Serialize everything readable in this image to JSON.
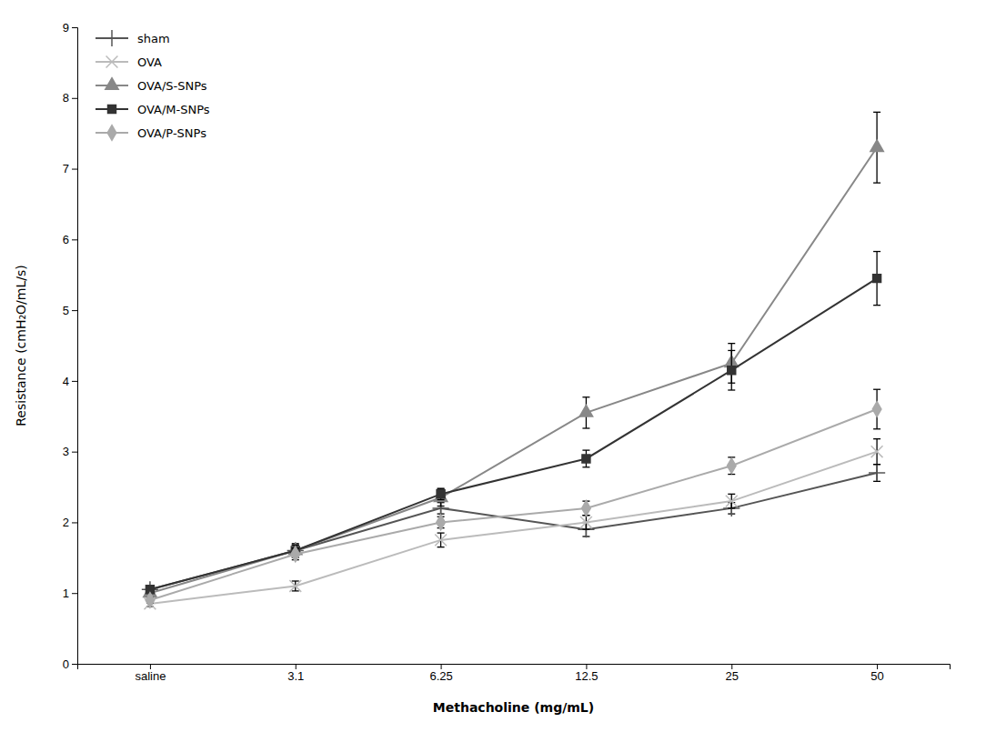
{
  "chart_data": {
    "type": "line",
    "x_label": "Methacholine (mg/mL)",
    "y_label": "Resistance (cmH₂O/mL/s)",
    "categories": [
      "saline",
      "3.1",
      "6.25",
      "12.5",
      "25",
      "50"
    ],
    "series": [
      {
        "name": "sham",
        "color": "#555555",
        "marker": "plus",
        "line_style": "solid",
        "values": [
          1.05,
          1.6,
          2.2,
          1.9,
          2.2,
          2.7
        ],
        "errors": [
          0.04,
          0.08,
          0.08,
          0.1,
          0.08,
          0.12
        ]
      },
      {
        "name": "OVA",
        "color": "#bbbbbb",
        "marker": "x",
        "line_style": "solid",
        "values": [
          0.85,
          1.1,
          1.75,
          2.0,
          2.3,
          3.0
        ],
        "errors": [
          0.04,
          0.07,
          0.1,
          0.1,
          0.1,
          0.18
        ]
      },
      {
        "name": "OVA/S-SNPs",
        "color": "#888888",
        "marker": "triangle",
        "line_style": "solid",
        "values": [
          1.0,
          1.6,
          2.35,
          3.55,
          4.25,
          7.3
        ],
        "errors": [
          0.05,
          0.1,
          0.12,
          0.22,
          0.28,
          0.5
        ]
      },
      {
        "name": "OVA/M-SNPs",
        "color": "#333333",
        "marker": "square",
        "line_style": "solid",
        "values": [
          1.05,
          1.6,
          2.4,
          2.9,
          4.15,
          5.45
        ],
        "errors": [
          0.05,
          0.08,
          0.08,
          0.12,
          0.28,
          0.38
        ]
      },
      {
        "name": "OVA/P-SNPs",
        "color": "#aaaaaa",
        "marker": "diamond",
        "line_style": "solid",
        "values": [
          0.9,
          1.55,
          2.0,
          2.2,
          2.8,
          3.6
        ],
        "errors": [
          0.04,
          0.08,
          0.08,
          0.1,
          0.12,
          0.28
        ]
      }
    ],
    "ylim": [
      0,
      9
    ],
    "yticks": [
      0,
      1,
      2,
      3,
      4,
      5,
      6,
      7,
      8,
      9
    ],
    "grid": false,
    "legend": "upper left"
  }
}
